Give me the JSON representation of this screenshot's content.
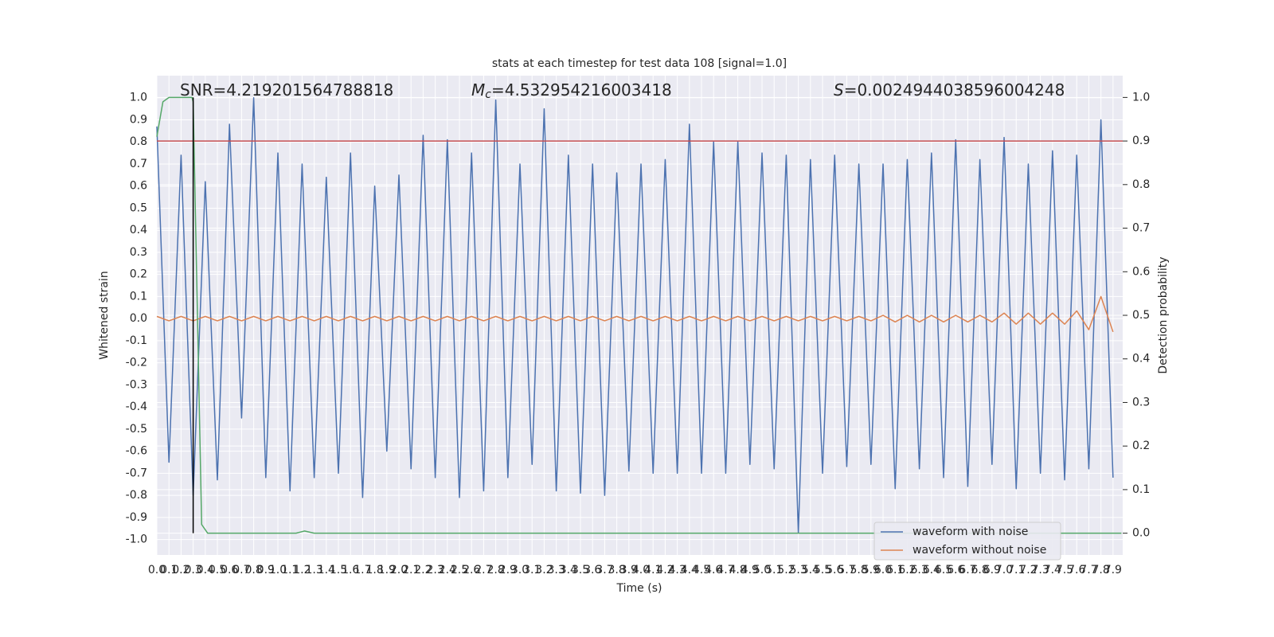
{
  "chart_data": {
    "type": "line",
    "title": "stats at each timestep for test data 108 [signal=1.0]",
    "x_label": "Time (s)",
    "y_label": "Whitened strain",
    "y2_label": "Detection probability",
    "annotations": [
      [
        "SNR=4.219201564788818"
      ],
      [
        "M",
        "c",
        "=4.532954216003418"
      ],
      [
        "S",
        "=0.0024944038596004248"
      ]
    ],
    "x": [
      0,
      0.1,
      0.2,
      0.3,
      0.4,
      0.5,
      0.6,
      0.7,
      0.8,
      0.9,
      1,
      1.1,
      1.2,
      1.3,
      1.4,
      1.5,
      1.6,
      1.7,
      1.8,
      1.9,
      2,
      2.1,
      2.2,
      2.3,
      2.4,
      2.5,
      2.6,
      2.7,
      2.8,
      2.9,
      3,
      3.1,
      3.2,
      3.3,
      3.4,
      3.5,
      3.6,
      3.7,
      3.8,
      3.9,
      4,
      4.1,
      4.2,
      4.3,
      4.4,
      4.5,
      4.6,
      4.7,
      4.8,
      4.9,
      5,
      5.1,
      5.2,
      5.3,
      5.4,
      5.5,
      5.6,
      5.7,
      5.8,
      5.9,
      6,
      6.1,
      6.2,
      6.3,
      6.4,
      6.5,
      6.6,
      6.7,
      6.8,
      6.9,
      7,
      7.1,
      7.2,
      7.3,
      7.4,
      7.5,
      7.6,
      7.7,
      7.8,
      7.9
    ],
    "series": [
      {
        "name": "waveform with noise",
        "color": "#4c72b0",
        "values": [
          0.87,
          -0.65,
          0.74,
          -0.8,
          0.62,
          -0.73,
          0.88,
          -0.45,
          1.0,
          -0.72,
          0.75,
          -0.78,
          0.7,
          -0.72,
          0.64,
          -0.7,
          0.75,
          -0.81,
          0.6,
          -0.6,
          0.65,
          -0.68,
          0.83,
          -0.72,
          0.81,
          -0.81,
          0.75,
          -0.78,
          0.99,
          -0.72,
          0.7,
          -0.66,
          0.95,
          -0.78,
          0.74,
          -0.79,
          0.7,
          -0.8,
          0.66,
          -0.69,
          0.7,
          -0.7,
          0.72,
          -0.7,
          0.88,
          -0.7,
          0.8,
          -0.7,
          0.8,
          -0.66,
          0.75,
          -0.68,
          0.74,
          -0.97,
          0.72,
          -0.7,
          0.74,
          -0.67,
          0.7,
          -0.66,
          0.7,
          -0.77,
          0.72,
          -0.68,
          0.75,
          -0.72,
          0.81,
          -0.76,
          0.72,
          -0.66,
          0.82,
          -0.77,
          0.7,
          -0.7,
          0.76,
          -0.73,
          0.74,
          -0.68,
          0.9,
          -0.72
        ]
      },
      {
        "name": "waveform without noise",
        "color": "#dd8452",
        "values": [
          0.01,
          -0.01,
          0.01,
          -0.01,
          0.01,
          -0.01,
          0.01,
          -0.01,
          0.01,
          -0.01,
          0.01,
          -0.01,
          0.01,
          -0.01,
          0.01,
          -0.01,
          0.01,
          -0.01,
          0.01,
          -0.01,
          0.01,
          -0.01,
          0.01,
          -0.01,
          0.01,
          -0.01,
          0.01,
          -0.01,
          0.01,
          -0.01,
          0.01,
          -0.01,
          0.01,
          -0.01,
          0.01,
          -0.01,
          0.01,
          -0.01,
          0.01,
          -0.01,
          0.01,
          -0.01,
          0.01,
          -0.01,
          0.01,
          -0.01,
          0.01,
          -0.01,
          0.01,
          -0.01,
          0.01,
          -0.01,
          0.01,
          -0.01,
          0.01,
          -0.01,
          0.01,
          -0.01,
          0.01,
          -0.01,
          0.015,
          -0.015,
          0.015,
          -0.015,
          0.015,
          -0.015,
          0.015,
          -0.015,
          0.015,
          -0.015,
          0.025,
          -0.025,
          0.025,
          -0.025,
          0.025,
          -0.025,
          0.035,
          -0.05,
          0.1,
          -0.06
        ]
      }
    ],
    "probability": {
      "color": "#55a868",
      "axis": "y2",
      "x": [
        0,
        0.05,
        0.1,
        0.2,
        0.29,
        0.3,
        0.37,
        0.42,
        1.15,
        1.22,
        1.3,
        7.97
      ],
      "values": [
        0.91,
        0.99,
        1.0,
        1.0,
        1.0,
        0.99,
        0.02,
        0.0,
        0.0,
        0.005,
        0.0,
        0.0
      ]
    },
    "threshold": 0.9,
    "threshold_color": "#c44e52",
    "marker_x": 0.3,
    "marker_color": "#000000",
    "xlim": [
      0,
      7.98
    ],
    "ylim": [
      -1.07,
      1.1
    ],
    "y2lim": [
      -0.05,
      1.05
    ],
    "xticks": [
      {
        "value": 0,
        "label": "0.0"
      },
      0.1,
      0.2,
      0.3,
      0.4,
      0.5,
      0.6,
      0.7,
      0.8,
      0.9,
      {
        "value": 1,
        "label": "1.0"
      },
      1.1,
      1.2,
      1.3,
      1.4,
      1.5,
      1.6,
      1.7,
      1.8,
      1.9,
      {
        "value": 2,
        "label": "2.0"
      },
      2.1,
      2.2,
      2.3,
      2.4,
      2.5,
      2.6,
      2.7,
      2.8,
      2.9,
      {
        "value": 3,
        "label": "3.0"
      },
      3.1,
      3.2,
      3.3,
      3.4,
      3.5,
      3.6,
      3.7,
      3.8,
      3.9,
      {
        "value": 4,
        "label": "4.0"
      },
      4.1,
      4.2,
      4.3,
      4.4,
      4.5,
      4.6,
      4.7,
      4.8,
      4.9,
      {
        "value": 5,
        "label": "5.0"
      },
      5.1,
      5.2,
      5.3,
      5.4,
      5.5,
      5.6,
      5.7,
      5.8,
      5.9,
      {
        "value": 6,
        "label": "6.0"
      },
      6.1,
      6.2,
      6.3,
      6.4,
      6.5,
      6.6,
      6.7,
      6.8,
      6.9,
      {
        "value": 7,
        "label": "7.0"
      },
      7.1,
      7.2,
      7.3,
      7.4,
      7.5,
      7.6,
      7.7,
      7.8,
      7.9
    ],
    "yticks": [
      {
        "value": -1,
        "label": "-1.0"
      },
      -0.9,
      -0.8,
      -0.7,
      -0.6,
      -0.5,
      -0.4,
      -0.3,
      -0.2,
      -0.1,
      {
        "value": 0,
        "label": "0.0"
      },
      0.1,
      0.2,
      0.3,
      0.4,
      0.5,
      0.6,
      0.7,
      0.8,
      0.9,
      {
        "value": 1,
        "label": "1.0"
      }
    ],
    "y2ticks": [
      {
        "value": 0,
        "label": "0.0"
      },
      0.1,
      0.2,
      0.3,
      0.4,
      0.5,
      0.6,
      0.7,
      0.8,
      0.9,
      {
        "value": 1,
        "label": "1.0"
      }
    ],
    "grid": true,
    "legend": "lower right"
  }
}
